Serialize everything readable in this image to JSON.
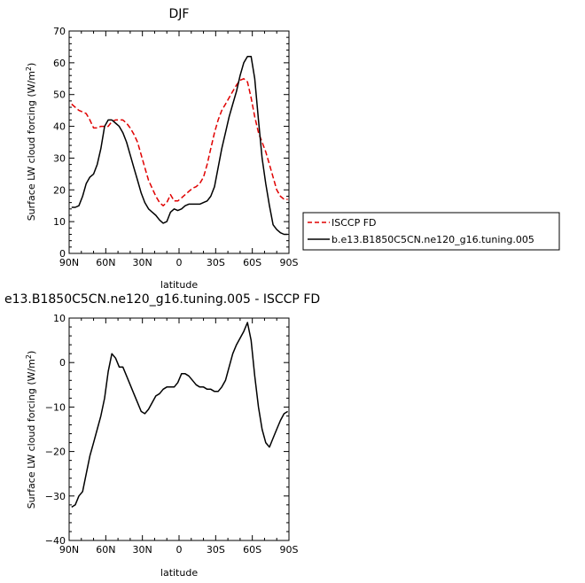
{
  "chart_data": [
    {
      "type": "line",
      "title": "DJF",
      "xlabel": "latitude",
      "ylabel": "Surface LW cloud forcing (W/m²)",
      "ylabel_main": "Surface LW cloud forcing (W/m",
      "ylabel_sup": "2",
      "ylabel_end": ")",
      "xlim": [
        -90,
        90
      ],
      "ylim": [
        0,
        70
      ],
      "yticks": [
        "0",
        "10",
        "20",
        "30",
        "40",
        "50",
        "60",
        "70"
      ],
      "xticks": [
        "90N",
        "60N",
        "30N",
        "0",
        "30S",
        "60S",
        "90S"
      ],
      "legend_position": "right-bottom",
      "series": [
        {
          "name": "ISCCP FD",
          "color": "#e00000",
          "dash": "dashed",
          "x": [
            -88,
            -85,
            -82,
            -79,
            -76,
            -73,
            -70,
            -67,
            -64,
            -61,
            -58,
            -55,
            -52,
            -49,
            -46,
            -43,
            -40,
            -37,
            -34,
            -31,
            -28,
            -25,
            -22,
            -19,
            -16,
            -13,
            -10,
            -7,
            -4,
            -1,
            2,
            5,
            8,
            11,
            14,
            17,
            20,
            23,
            26,
            29,
            32,
            35,
            38,
            41,
            44,
            47,
            50,
            53,
            56,
            59,
            62,
            65,
            68,
            71,
            74,
            77,
            80,
            83,
            86,
            89
          ],
          "y": [
            47,
            46,
            45,
            44.5,
            44,
            42,
            39.5,
            39.5,
            40,
            40,
            40,
            41.5,
            42,
            42,
            42,
            41,
            39.5,
            37.5,
            35,
            31,
            27,
            23,
            20.5,
            18,
            16,
            15,
            16,
            18.5,
            16.5,
            16.5,
            17.5,
            18.5,
            19.5,
            20.5,
            21,
            22,
            24,
            28,
            33,
            38,
            42,
            45,
            47,
            49,
            51,
            53,
            54.5,
            55,
            54,
            49,
            43,
            38,
            35,
            32,
            28,
            24,
            20,
            18,
            17,
            17
          ]
        },
        {
          "name": "b.e13.B1850C5CN.ne120_g16.tuning.005",
          "color": "#000000",
          "dash": "solid",
          "x": [
            -88,
            -85,
            -82,
            -79,
            -76,
            -73,
            -70,
            -67,
            -64,
            -61,
            -58,
            -55,
            -52,
            -49,
            -46,
            -43,
            -40,
            -37,
            -34,
            -31,
            -28,
            -25,
            -22,
            -19,
            -16,
            -13,
            -10,
            -7,
            -4,
            -1,
            2,
            5,
            8,
            11,
            14,
            17,
            20,
            23,
            26,
            29,
            32,
            35,
            38,
            41,
            44,
            47,
            50,
            53,
            56,
            59,
            62,
            65,
            68,
            71,
            74,
            77,
            80,
            83,
            86,
            89
          ],
          "y": [
            14.5,
            14.5,
            15,
            18,
            22,
            24,
            25,
            28,
            33,
            40,
            42,
            42,
            41,
            40,
            38,
            35,
            31,
            27,
            23,
            19,
            16,
            14,
            13,
            12,
            10.5,
            9.5,
            10,
            13,
            14,
            13.5,
            14,
            15,
            15.5,
            15.5,
            15.5,
            15.5,
            16,
            16.5,
            18,
            21,
            27,
            33,
            38,
            43,
            47,
            51,
            56,
            60,
            62,
            62,
            55,
            42,
            30,
            22,
            15,
            9,
            7.5,
            6.5,
            6,
            6
          ]
        }
      ]
    },
    {
      "type": "line",
      "title": "e13.B1850C5CN.ne120_g16.tuning.005 - ISCCP FD",
      "xlabel": "latitude",
      "ylabel": "Surface LW cloud forcing (W/m²)",
      "ylabel_main": "Surface LW cloud forcing (W/m",
      "ylabel_sup": "2",
      "ylabel_end": ")",
      "xlim": [
        -90,
        90
      ],
      "ylim": [
        -40,
        10
      ],
      "yticks": [
        "-40",
        "-30",
        "-20",
        "-10",
        "0",
        "10"
      ],
      "xticks": [
        "90N",
        "60N",
        "30N",
        "0",
        "30S",
        "60S",
        "90S"
      ],
      "series": [
        {
          "color": "#000000",
          "dash": "solid",
          "x": [
            -88,
            -85,
            -82,
            -79,
            -76,
            -73,
            -70,
            -67,
            -64,
            -61,
            -58,
            -55,
            -52,
            -49,
            -46,
            -43,
            -40,
            -37,
            -34,
            -31,
            -28,
            -25,
            -22,
            -19,
            -16,
            -13,
            -10,
            -7,
            -4,
            -1,
            2,
            5,
            8,
            11,
            14,
            17,
            20,
            23,
            26,
            29,
            32,
            35,
            38,
            41,
            44,
            47,
            50,
            53,
            56,
            59,
            62,
            65,
            68,
            71,
            74,
            77,
            80,
            83,
            86,
            89
          ],
          "y": [
            -32.5,
            -32,
            -30,
            -29,
            -25,
            -21,
            -18,
            -15,
            -12,
            -8,
            -2,
            2,
            1,
            -1,
            -1,
            -3,
            -5,
            -7,
            -9,
            -11,
            -11.5,
            -10.5,
            -9,
            -7.5,
            -7,
            -6,
            -5.5,
            -5.5,
            -5.5,
            -4.5,
            -2.5,
            -2.5,
            -3,
            -4,
            -5,
            -5.5,
            -5.5,
            -6,
            -6,
            -6.5,
            -6.5,
            -5.5,
            -4,
            -1,
            2,
            4,
            5.5,
            7,
            9,
            5,
            -3,
            -10,
            -15,
            -18,
            -19,
            -17,
            -15,
            -13,
            -11.5,
            -11
          ]
        }
      ]
    }
  ]
}
